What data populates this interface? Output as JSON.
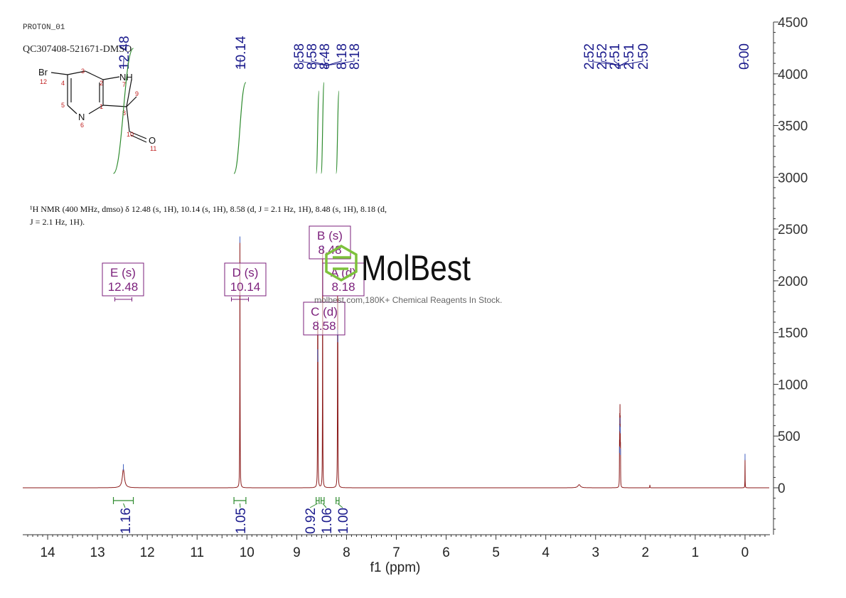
{
  "header": {
    "experiment": "PROTON_01",
    "sample_id": "QC307408-521671-DMSO"
  },
  "structure": {
    "atoms": [
      {
        "id": "Br",
        "label": "Br",
        "number": "12"
      },
      {
        "id": "C4",
        "label": "",
        "number": "4"
      },
      {
        "id": "C3",
        "label": "",
        "number": "3"
      },
      {
        "id": "C2",
        "label": "",
        "number": "2"
      },
      {
        "id": "N7",
        "label": "NH",
        "number": "7"
      },
      {
        "id": "C9",
        "label": "",
        "number": "9"
      },
      {
        "id": "C8",
        "label": "",
        "number": "8"
      },
      {
        "id": "C1",
        "label": "",
        "number": "1"
      },
      {
        "id": "N6",
        "label": "N",
        "number": "6"
      },
      {
        "id": "C5",
        "label": "",
        "number": "5"
      },
      {
        "id": "C10",
        "label": "",
        "number": "10"
      },
      {
        "id": "O11",
        "label": "O",
        "number": "11"
      }
    ]
  },
  "nmr_text": {
    "line1": "¹H NMR (400 MHz, dmso) δ 12.48 (s, 1H), 10.14 (s, 1H), 8.58 (d, J = 2.1 Hz, 1H), 8.48 (s, 1H), 8.18 (d,",
    "line2": "J = 2.1 Hz, 1H)."
  },
  "watermark": {
    "brand": "MolBest",
    "tagline": "molbest.com,180K+ Chemical Reagents In Stock."
  },
  "colors": {
    "spectrum": "#8b1a1a",
    "peak_labels": "#1a1a8c",
    "integrals": "#2e8b2e",
    "multiplet_boxes": "#7b1f7b",
    "axis": "#333333",
    "watermark_brand": "#111111",
    "watermark_icon": "#7dc13c"
  },
  "chart_data": {
    "type": "line",
    "title": "",
    "xlabel": "f1 (ppm)",
    "ylabel": "",
    "xlim": [
      14.5,
      -0.5
    ],
    "x_reversed": true,
    "ylim": [
      -450,
      4500
    ],
    "x_ticks": [
      14,
      13,
      12,
      11,
      10,
      9,
      8,
      7,
      6,
      5,
      4,
      3,
      2,
      1,
      0
    ],
    "y_ticks": [
      4500,
      4000,
      3500,
      3000,
      2500,
      2000,
      1500,
      1000,
      500,
      0
    ],
    "y_axis_side": "right",
    "peaks": [
      {
        "ppm": 12.48,
        "height": 180,
        "width": 0.05
      },
      {
        "ppm": 10.14,
        "height": 2380,
        "width": 0.006
      },
      {
        "ppm": 8.58,
        "height": 1290,
        "width": 0.006
      },
      {
        "ppm": 8.575,
        "height": 1230,
        "width": 0.006
      },
      {
        "ppm": 8.48,
        "height": 2300,
        "width": 0.006
      },
      {
        "ppm": 8.18,
        "height": 1480,
        "width": 0.006
      },
      {
        "ppm": 8.175,
        "height": 1420,
        "width": 0.006
      },
      {
        "ppm": 3.33,
        "height": 30,
        "width": 0.06
      },
      {
        "ppm": 2.52,
        "height": 350,
        "width": 0.004
      },
      {
        "ppm": 2.515,
        "height": 560,
        "width": 0.004
      },
      {
        "ppm": 2.51,
        "height": 630,
        "width": 0.004
      },
      {
        "ppm": 2.505,
        "height": 540,
        "width": 0.004
      },
      {
        "ppm": 2.5,
        "height": 330,
        "width": 0.004
      },
      {
        "ppm": 1.91,
        "height": 28,
        "width": 0.006
      },
      {
        "ppm": 0.0,
        "height": 280,
        "width": 0.004
      }
    ],
    "peak_labels": [
      {
        "text": "12.48",
        "ppm": 12.48
      },
      {
        "text": "10.14",
        "ppm": 10.14
      },
      {
        "text": "8.58",
        "ppm": 8.585
      },
      {
        "text": "8.58",
        "ppm": 8.575
      },
      {
        "text": "8.48",
        "ppm": 8.48
      },
      {
        "text": "8.18",
        "ppm": 8.185
      },
      {
        "text": "8.18",
        "ppm": 8.175
      },
      {
        "text": "2.52",
        "ppm": 2.52
      },
      {
        "text": "2.52",
        "ppm": 2.515
      },
      {
        "text": "2.51",
        "ppm": 2.51
      },
      {
        "text": "2.51",
        "ppm": 2.505
      },
      {
        "text": "2.50",
        "ppm": 2.5
      },
      {
        "text": "0.00",
        "ppm": 0.0
      }
    ],
    "integrals": [
      {
        "value": "1.16",
        "from": 12.68,
        "to": 12.28
      },
      {
        "value": "1.05",
        "from": 10.26,
        "to": 10.02
      },
      {
        "value": "0.92",
        "from": 8.61,
        "to": 8.55
      },
      {
        "value": "1.06",
        "from": 8.51,
        "to": 8.45
      },
      {
        "value": "1.00",
        "from": 8.21,
        "to": 8.15
      }
    ],
    "multiplets": [
      {
        "letter": "E",
        "type": "s",
        "shift": "12.48",
        "ppm": 12.48
      },
      {
        "letter": "D",
        "type": "s",
        "shift": "10.14",
        "ppm": 10.14
      },
      {
        "letter": "B",
        "type": "s",
        "shift": "8.48",
        "ppm": 8.48
      },
      {
        "letter": "A",
        "type": "d",
        "shift": "8.18",
        "ppm": 8.18
      },
      {
        "letter": "C",
        "type": "d",
        "shift": "8.58",
        "ppm": 8.58
      }
    ]
  }
}
